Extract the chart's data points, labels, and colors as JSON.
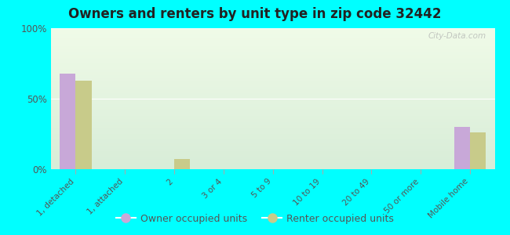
{
  "title": "Owners and renters by unit type in zip code 32442",
  "categories": [
    "1, detached",
    "1, attached",
    "2",
    "3 or 4",
    "5 to 9",
    "10 to 19",
    "20 to 49",
    "50 or more",
    "Mobile home"
  ],
  "owner_values": [
    68,
    0,
    0,
    0,
    0,
    0,
    0,
    0,
    30
  ],
  "renter_values": [
    63,
    0,
    7,
    0,
    0,
    0,
    0,
    0,
    26
  ],
  "owner_color": "#c8a8d8",
  "renter_color": "#c8cb8a",
  "background_color": "#00ffff",
  "plot_bg_top_color": "#d8edd8",
  "plot_bg_bottom_color": "#f0fbe8",
  "ylim": [
    0,
    100
  ],
  "yticks": [
    0,
    50,
    100
  ],
  "ytick_labels": [
    "0%",
    "50%",
    "100%"
  ],
  "title_fontsize": 12,
  "legend_owner_label": "Owner occupied units",
  "legend_renter_label": "Renter occupied units",
  "watermark": "City-Data.com"
}
